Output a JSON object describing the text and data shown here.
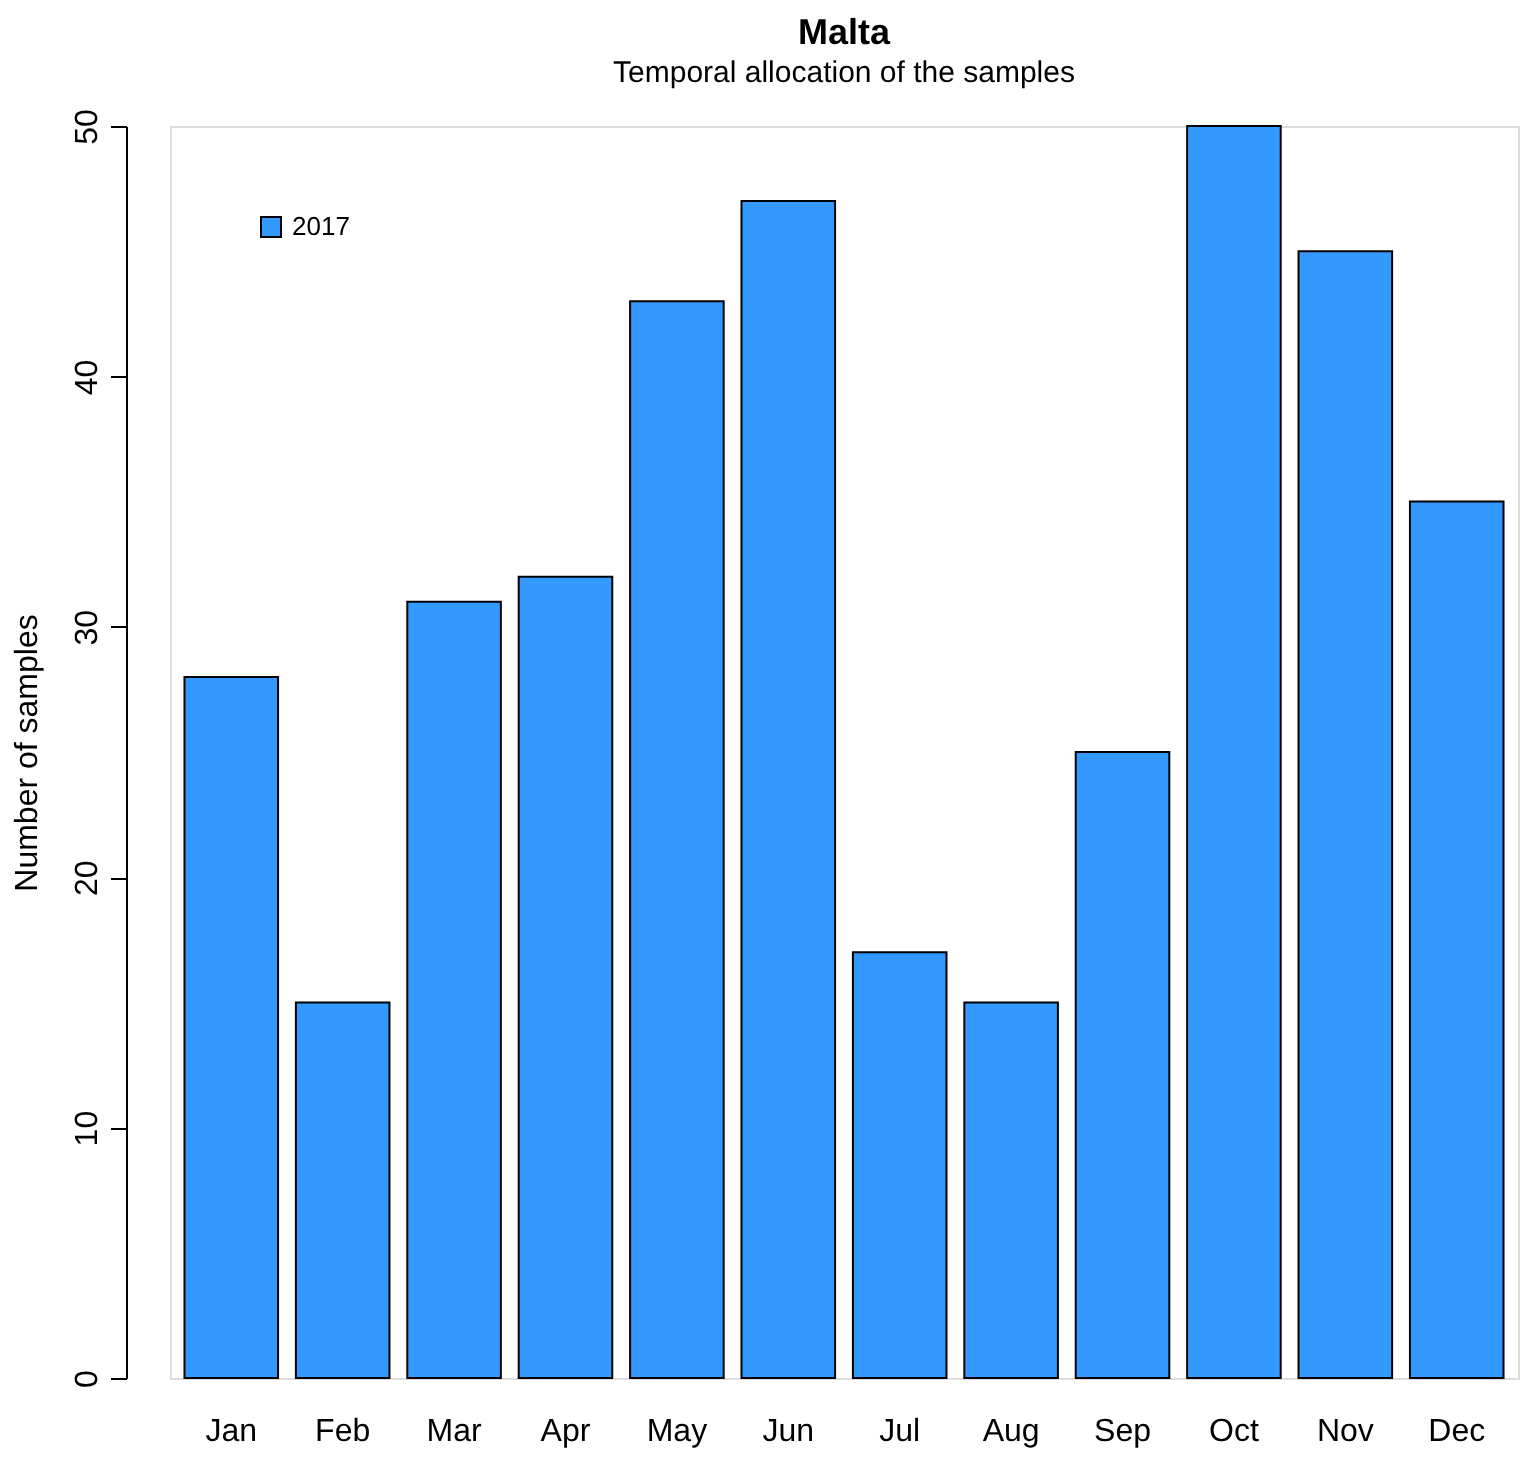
{
  "chart_data": {
    "type": "bar",
    "title": "Malta",
    "subtitle": "Temporal allocation of the samples",
    "ylabel": "Number of samples",
    "categories": [
      "Jan",
      "Feb",
      "Mar",
      "Apr",
      "May",
      "Jun",
      "Jul",
      "Aug",
      "Sep",
      "Oct",
      "Nov",
      "Dec"
    ],
    "series": [
      {
        "name": "2017",
        "color": "#3399ff",
        "values": [
          28,
          15,
          31,
          32,
          43,
          47,
          17,
          15,
          25,
          50,
          45,
          35
        ]
      }
    ],
    "ylim": [
      0,
      50
    ],
    "yticks": [
      0,
      10,
      20,
      30,
      40,
      50
    ],
    "grid": false,
    "legend": "top left"
  }
}
